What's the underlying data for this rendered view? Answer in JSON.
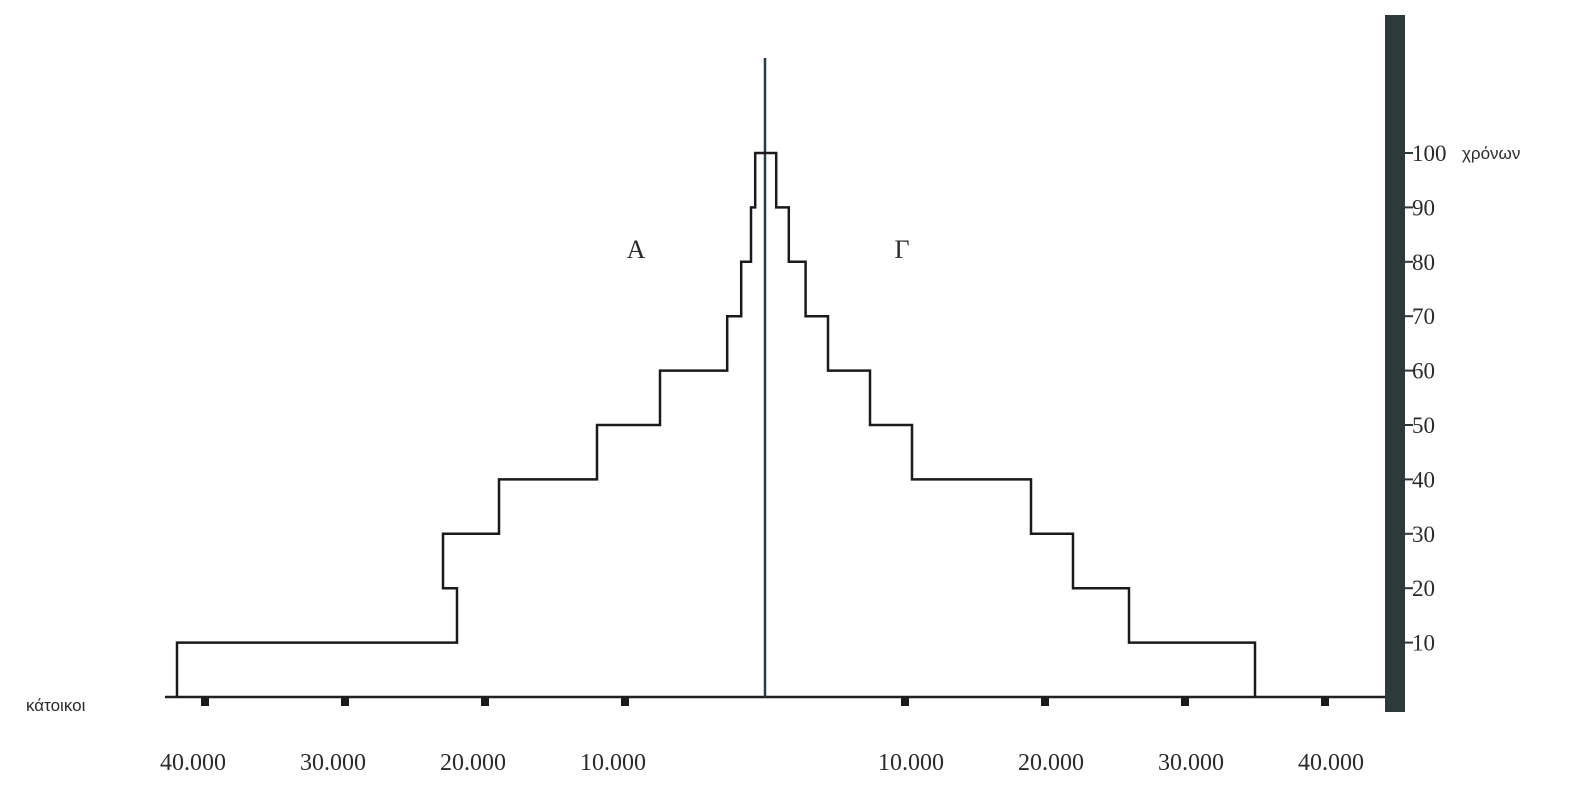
{
  "chart_data": {
    "type": "bar",
    "subtype": "population-pyramid",
    "title": "",
    "xlabel": "κάτοικοι",
    "ylabel": "χρόνων",
    "x_tick_labels_left": [
      "40.000",
      "30.000",
      "20.000",
      "10.000"
    ],
    "x_tick_labels_right": [
      "10.000",
      "20.000",
      "30.000",
      "40.000"
    ],
    "x_ticks_values": [
      -40000,
      -30000,
      -20000,
      -10000,
      10000,
      20000,
      30000,
      40000
    ],
    "xlim": [
      -44000,
      44000
    ],
    "y_tick_labels": [
      "10",
      "20",
      "30",
      "40",
      "50",
      "60",
      "70",
      "80",
      "90",
      "100"
    ],
    "ylim": [
      0,
      100
    ],
    "age_groups": [
      "0-10",
      "10-20",
      "20-30",
      "30-40",
      "40-50",
      "50-60",
      "60-70",
      "70-80",
      "80-90",
      "90-100"
    ],
    "series": [
      {
        "name": "Α",
        "side": "left",
        "values": [
          42000,
          22000,
          23000,
          19000,
          12000,
          7500,
          2700,
          1700,
          1000,
          700
        ]
      },
      {
        "name": "Γ",
        "side": "right",
        "values": [
          35000,
          26000,
          22000,
          19000,
          10500,
          7500,
          4500,
          2900,
          1700,
          800
        ]
      }
    ],
    "grid": false
  }
}
